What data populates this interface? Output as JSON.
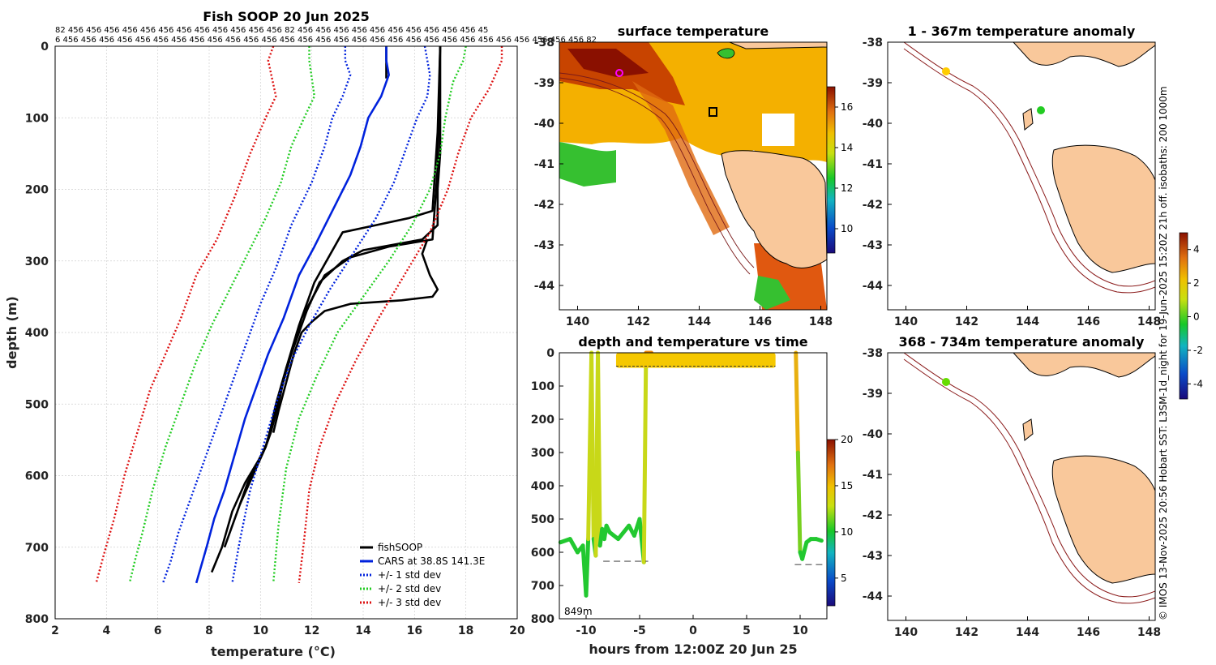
{
  "chart_data": [
    {
      "type": "line",
      "title": "Fish SOOP 20 Jun 2025",
      "xlabel": "temperature (°C)",
      "ylabel": "depth (m)",
      "xlim": [
        2,
        20
      ],
      "ylim": [
        800,
        0
      ],
      "xticks": [
        2,
        4,
        6,
        8,
        10,
        12,
        14,
        16,
        18,
        20
      ],
      "yticks": [
        0,
        100,
        200,
        300,
        400,
        500,
        600,
        700,
        800
      ],
      "top_counts_row1": "82 456 456 456 456 456 456 456 456 456 456 456 456 82 456 456 456 456 456 456 456 456 456 456 45",
      "top_counts_row2": "6 456 456 456 456 456 456 456 456 456 456 456 456 456 456 456 456 456 456 456 456 456 456 456 456 456 456 456 456 456 82",
      "legend": [
        "fishSOOP",
        "CARS at 38.8S 141.3E",
        "+/- 1 std dev",
        "+/- 2 std dev",
        "+/- 3 std dev"
      ],
      "series": [
        {
          "name": "fishSOOP",
          "color": "#000000",
          "style": "solid",
          "t": [
            14.9,
            14.9,
            14.9,
            14.9
          ],
          "d": [
            0,
            15,
            30,
            45
          ]
        },
        {
          "name": "fishSOOP",
          "color": "#000000",
          "style": "solid",
          "t": [
            17.0,
            17.0,
            17.0,
            17.0,
            16.9,
            16.9,
            16.3,
            14.0,
            13.2,
            12.3,
            11.8,
            11.5,
            11.0,
            10.7,
            10.4,
            10.2,
            9.9,
            9.4,
            8.9,
            8.5,
            8.1
          ],
          "d": [
            0,
            50,
            100,
            150,
            200,
            250,
            270,
            285,
            300,
            330,
            370,
            400,
            450,
            500,
            540,
            560,
            580,
            610,
            650,
            700,
            735
          ]
        },
        {
          "name": "fishSOOP",
          "color": "#000000",
          "style": "solid",
          "t": [
            17.0,
            16.9,
            16.7,
            15.8,
            14.5,
            13.2,
            12.1,
            11.5,
            11.0,
            10.6,
            10.3,
            10.0,
            9.5,
            9.0,
            8.6
          ],
          "d": [
            0,
            120,
            230,
            240,
            250,
            260,
            330,
            390,
            450,
            500,
            550,
            575,
            610,
            660,
            700
          ]
        },
        {
          "name": "fishSOOP",
          "color": "#000000",
          "style": "solid",
          "t": [
            17.0,
            16.9,
            16.7,
            15.0,
            13.5,
            12.5,
            11.6,
            11.2,
            10.8,
            10.5,
            10.2,
            9.7,
            9.2
          ],
          "d": [
            0,
            170,
            270,
            280,
            295,
            320,
            380,
            430,
            480,
            520,
            560,
            600,
            640
          ]
        },
        {
          "name": "fishSOOP",
          "color": "#000000",
          "style": "solid",
          "t": [
            16.5,
            16.3,
            16.6,
            16.9,
            16.7,
            15.5,
            13.5,
            12.5,
            12.0,
            11.6,
            11.3,
            11.0,
            10.7,
            10.5
          ],
          "d": [
            270,
            290,
            320,
            340,
            350,
            355,
            360,
            370,
            385,
            400,
            430,
            470,
            510,
            540
          ]
        },
        {
          "name": "CARS at 38.8S 141.3E",
          "color": "#0022dd",
          "style": "solid",
          "t": [
            14.9,
            14.9,
            15.0,
            14.7,
            14.2,
            13.9,
            13.5,
            12.8,
            12.1,
            11.5,
            10.9,
            10.3,
            9.8,
            9.4,
            9.0,
            8.6,
            8.2,
            7.9,
            7.5
          ],
          "d": [
            0,
            20,
            40,
            70,
            100,
            140,
            180,
            230,
            280,
            320,
            380,
            430,
            480,
            520,
            570,
            620,
            660,
            700,
            750
          ]
        },
        {
          "name": "+/- 1 std dev",
          "color": "#0022dd",
          "style": "dotted",
          "t": [
            13.3,
            13.3,
            13.5,
            13.2,
            12.8,
            12.5,
            12.0,
            11.2,
            10.6,
            10.0,
            9.5,
            9.0,
            8.5,
            7.9,
            7.3,
            6.8,
            6.5,
            6.2
          ],
          "d": [
            0,
            20,
            40,
            70,
            100,
            140,
            190,
            250,
            310,
            360,
            410,
            460,
            510,
            570,
            630,
            680,
            720,
            750
          ]
        },
        {
          "name": "+/- 1 std dev",
          "color": "#0022dd",
          "style": "dotted",
          "t": [
            16.4,
            16.5,
            16.6,
            16.5,
            16.1,
            15.7,
            15.2,
            14.5,
            13.6,
            12.7,
            11.9,
            11.2,
            10.6,
            10.1,
            9.6,
            9.2,
            8.9
          ],
          "d": [
            0,
            20,
            40,
            70,
            100,
            140,
            190,
            240,
            290,
            340,
            390,
            440,
            500,
            560,
            620,
            690,
            750
          ]
        },
        {
          "name": "+/- 2 std dev",
          "color": "#22cc22",
          "style": "dotted",
          "t": [
            11.9,
            11.9,
            12.1,
            11.7,
            11.2,
            10.8,
            10.2,
            9.5,
            8.8,
            8.1,
            7.5,
            6.9,
            6.3,
            5.8,
            5.4,
            5.1,
            4.9
          ],
          "d": [
            0,
            20,
            70,
            100,
            140,
            190,
            240,
            290,
            340,
            390,
            440,
            500,
            560,
            620,
            680,
            720,
            750
          ]
        },
        {
          "name": "+/- 2 std dev",
          "color": "#22cc22",
          "style": "dotted",
          "t": [
            18.0,
            17.9,
            17.5,
            17.2,
            17.0,
            16.6,
            15.9,
            15.0,
            14.0,
            13.0,
            12.2,
            11.5,
            11.0,
            10.7,
            10.5
          ],
          "d": [
            0,
            20,
            50,
            100,
            150,
            200,
            250,
            300,
            350,
            400,
            460,
            520,
            590,
            670,
            750
          ]
        },
        {
          "name": "+/- 3 std dev",
          "color": "#dd1111",
          "style": "dotted",
          "t": [
            10.5,
            10.3,
            10.6,
            10.2,
            9.6,
            9.0,
            8.3,
            7.5,
            6.9,
            6.3,
            5.7,
            5.2,
            4.7,
            4.3,
            3.9,
            3.6
          ],
          "d": [
            0,
            20,
            70,
            100,
            150,
            210,
            270,
            320,
            380,
            430,
            480,
            540,
            600,
            660,
            710,
            750
          ]
        },
        {
          "name": "+/- 3 std dev",
          "color": "#dd1111",
          "style": "dotted",
          "t": [
            19.4,
            19.4,
            18.9,
            18.2,
            17.7,
            17.3,
            16.6,
            15.6,
            14.6,
            13.7,
            12.9,
            12.3,
            11.9,
            11.7,
            11.5
          ],
          "d": [
            0,
            20,
            60,
            100,
            150,
            200,
            260,
            320,
            380,
            440,
            500,
            560,
            620,
            690,
            750
          ]
        }
      ]
    },
    {
      "type": "heatmap",
      "title": "surface temperature",
      "xlim": [
        139.4,
        148.2
      ],
      "ylim": [
        -44.6,
        -38
      ],
      "xticks": [
        140,
        142,
        144,
        146,
        148
      ],
      "yticks": [
        -38,
        -39,
        -40,
        -41,
        -42,
        -43,
        -44
      ],
      "colorbar": {
        "ticks": [
          10,
          12,
          14,
          16
        ],
        "range": [
          8.8,
          17.0
        ]
      },
      "marker": {
        "lon": 141.3,
        "lat": -38.8,
        "color": "#ff00ff"
      }
    },
    {
      "type": "scatter",
      "title": "depth and temperature vs time",
      "xlabel": "hours from 12:00Z 20 Jun 25",
      "xlim": [
        -12.5,
        12.5
      ],
      "ylim": [
        800,
        0
      ],
      "xticks": [
        -10,
        -5,
        0,
        5,
        10
      ],
      "yticks": [
        0,
        100,
        200,
        300,
        400,
        500,
        600,
        700,
        800
      ],
      "annotation": "849m",
      "colorbar": {
        "ticks": [
          5,
          10,
          15,
          20
        ],
        "range": [
          2,
          20
        ]
      },
      "trace_t": [
        -12.4,
        -11.5,
        -10.8,
        -10.3,
        -10.0,
        -9.8,
        -9.5,
        -9.3,
        -9.1,
        -8.9,
        -8.7,
        -8.5,
        -8.3,
        -8.1,
        -7.8,
        -7.0,
        -6.0,
        -5.5,
        -5.0,
        -4.6,
        -4.4,
        -4.2,
        -4.1,
        -3.9
      ],
      "trace_d": [
        570,
        560,
        600,
        580,
        730,
        560,
        0,
        560,
        610,
        0,
        580,
        530,
        560,
        520,
        540,
        560,
        520,
        550,
        500,
        630,
        0,
        0,
        0,
        0
      ],
      "trace_t2": [
        9.6,
        9.8,
        10.0,
        10.2,
        10.6,
        11.0,
        11.5,
        12.0
      ],
      "trace_d2": [
        0,
        300,
        600,
        620,
        570,
        560,
        560,
        565
      ],
      "surface_band": {
        "t_start": -7.2,
        "t_end": 7.7,
        "depth_max": 45
      },
      "dashes": [
        {
          "t0": -8.4,
          "t1": -4.2,
          "d": 627
        },
        {
          "t0": 9.5,
          "t1": 12.2,
          "d": 637
        }
      ]
    },
    {
      "type": "map",
      "title": "1 - 367m temperature anomaly",
      "xlim": [
        139.4,
        148.2
      ],
      "ylim": [
        -44.6,
        -38
      ],
      "xticks": [
        140,
        142,
        144,
        146,
        148
      ],
      "yticks": [
        -38,
        -39,
        -40,
        -41,
        -42,
        -43,
        -44
      ],
      "points": [
        {
          "lon": 141.25,
          "lat": -38.65,
          "color": "#ffcc00"
        },
        {
          "lon": 144.45,
          "lat": -39.72,
          "color": "#22cc22"
        }
      ],
      "colorbar": {
        "ticks": [
          4,
          2,
          0,
          -2,
          -4
        ],
        "range": [
          -4.9,
          5.0
        ]
      }
    },
    {
      "type": "map",
      "title": "368 - 734m temperature anomaly",
      "xlim": [
        139.4,
        148.2
      ],
      "ylim": [
        -44.6,
        -38
      ],
      "xticks": [
        140,
        142,
        144,
        146,
        148
      ],
      "yticks": [
        -38,
        -39,
        -40,
        -41,
        -42,
        -43,
        -44
      ],
      "points": [
        {
          "lon": 141.3,
          "lat": -38.75,
          "color": "#66dd00"
        }
      ]
    }
  ],
  "side_text": "© IMOS 13-Nov-2025 20:56 Hobart SST: L3SM-1d_night for 19-Jun-2025 15:20Z 21h off. isobaths: 200  1000m"
}
